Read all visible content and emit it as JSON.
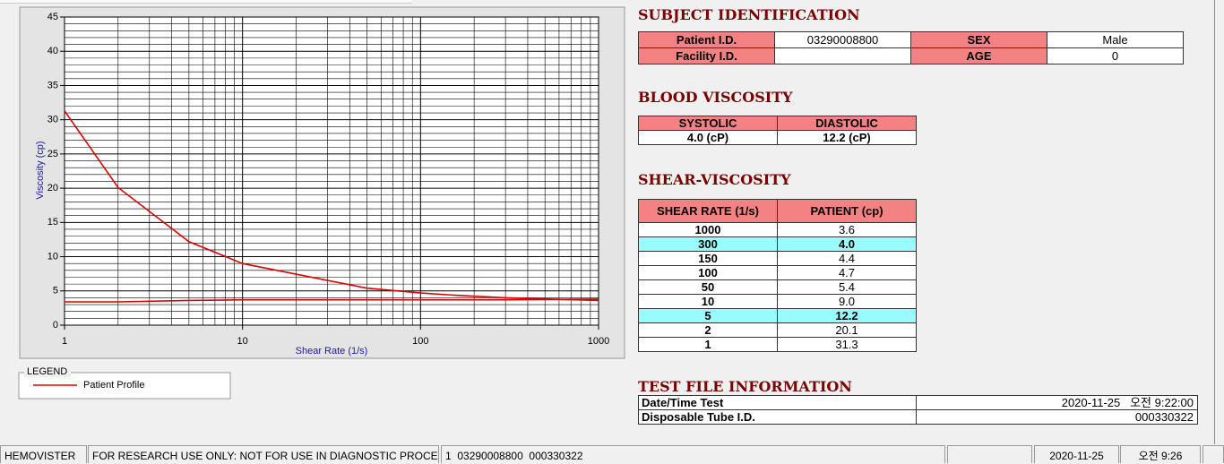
{
  "chart_data": {
    "type": "line",
    "x_label": "Shear Rate (1/s)",
    "y_label": "Viscosity (cp)",
    "x": [
      1,
      2,
      5,
      10,
      50,
      100,
      150,
      300,
      1000
    ],
    "series": [
      {
        "name": "Patient Profile",
        "color": "#dd0000",
        "values": [
          31.3,
          20.1,
          12.2,
          9.0,
          5.4,
          4.7,
          4.4,
          4.0,
          3.6
        ]
      },
      {
        "color": "#dd0000",
        "values": [
          3.4,
          3.4,
          3.6,
          3.7,
          3.7,
          3.7,
          3.7,
          3.7,
          3.8
        ]
      }
    ],
    "log_x": true,
    "xlim": [
      1,
      1000
    ],
    "xticks": [
      1,
      10,
      100,
      1000
    ],
    "xminorticks": [
      2,
      3,
      4,
      5,
      6,
      7,
      8,
      9,
      20,
      30,
      40,
      50,
      60,
      70,
      80,
      90,
      200,
      300,
      400,
      500,
      600,
      700,
      800,
      900
    ],
    "ylim": [
      0,
      45
    ],
    "yticks": [
      0,
      5,
      10,
      15,
      20,
      25,
      30,
      35,
      40,
      45
    ],
    "yminorticks": [
      1,
      2,
      3,
      4,
      6,
      7,
      8,
      9,
      11,
      12,
      13,
      14,
      16,
      17,
      18,
      19,
      21,
      22,
      23,
      24,
      26,
      27,
      28,
      29,
      31,
      32,
      33,
      34,
      36,
      37,
      38,
      39,
      41,
      42,
      43,
      44
    ],
    "grid": true,
    "legend_title": "LEGEND"
  },
  "subject_identification": {
    "title": "SUBJECT IDENTIFICATION",
    "rows": [
      [
        {
          "label": "Patient I.D.",
          "value": "03290008800"
        },
        {
          "label": "SEX",
          "value": "Male"
        }
      ],
      [
        {
          "label": "Facility I.D."
        },
        {
          "label": "AGE",
          "value": "0"
        }
      ]
    ]
  },
  "blood_viscosity": {
    "title": "BLOOD VISCOSITY",
    "headers": [
      "SYSTOLIC",
      "DIASTOLIC"
    ],
    "values": [
      "4.0 (cP)",
      "12.2 (cP)"
    ]
  },
  "shear_viscosity": {
    "title": "SHEAR-VISCOSITY",
    "headers": [
      "SHEAR RATE (1/s)",
      "PATIENT (cp)"
    ],
    "rows": [
      {
        "cells": [
          "1000",
          "3.6"
        ]
      },
      {
        "cells": [
          "300",
          "4.0"
        ],
        "highlight": true
      },
      {
        "cells": [
          "150",
          "4.4"
        ]
      },
      {
        "cells": [
          "100",
          "4.7"
        ]
      },
      {
        "cells": [
          "50",
          "5.4"
        ]
      },
      {
        "cells": [
          "10",
          "9.0"
        ]
      },
      {
        "cells": [
          "5",
          "12.2"
        ],
        "highlight": true
      },
      {
        "cells": [
          "2",
          "20.1"
        ]
      },
      {
        "cells": [
          "1",
          "31.3"
        ]
      }
    ]
  },
  "test_file_information": {
    "title": "TEST FILE INFORMATION",
    "rows": [
      [
        "Date/Time Test",
        "2020-11-25   오전 9:22:00"
      ],
      [
        "Disposable Tube I.D.",
        "000330322"
      ]
    ]
  },
  "status_bar": [
    "HEMOVISTER",
    "FOR RESEARCH USE ONLY: NOT FOR USE IN DIAGNOSTIC PROCEDURES",
    "1  03290008800  000330322",
    "2020-11-25",
    "오전 9:26"
  ]
}
